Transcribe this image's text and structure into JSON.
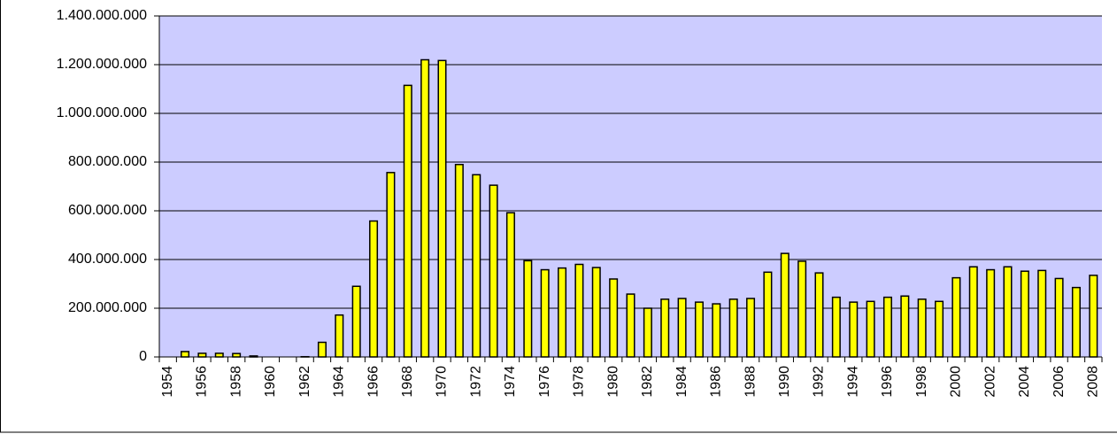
{
  "chart_data": {
    "type": "bar",
    "categories": [
      "1954",
      null,
      "1956",
      null,
      "1958",
      null,
      "1960",
      null,
      "1962",
      null,
      "1964",
      null,
      "1966",
      null,
      "1968",
      null,
      "1970",
      null,
      "1972",
      null,
      "1974",
      null,
      "1976",
      null,
      "1978",
      null,
      "1980",
      null,
      "1982",
      null,
      "1984",
      null,
      "1986",
      null,
      "1988",
      null,
      "1990",
      null,
      "1992",
      null,
      "1994",
      null,
      "1996",
      null,
      "1998",
      null,
      "2000",
      null,
      "2002",
      null,
      "2004",
      null,
      "2006",
      null,
      "2008"
    ],
    "values": [
      0,
      22000000,
      15000000,
      15000000,
      14000000,
      4000000,
      0,
      0,
      1000000,
      60000000,
      172000000,
      290000000,
      558000000,
      757000000,
      1115000000,
      1220000000,
      1217000000,
      790000000,
      748000000,
      705000000,
      592000000,
      395000000,
      358000000,
      365000000,
      380000000,
      367000000,
      320000000,
      258000000,
      200000000,
      237000000,
      240000000,
      225000000,
      218000000,
      237000000,
      240000000,
      348000000,
      425000000,
      393000000,
      345000000,
      245000000,
      225000000,
      228000000,
      245000000,
      250000000,
      237000000,
      228000000,
      325000000,
      370000000,
      358000000,
      370000000,
      352000000,
      355000000,
      322000000,
      285000000,
      335000000
    ],
    "color": "#ffff00",
    "ylim": [
      0,
      1400000000
    ],
    "yticks": [
      0,
      {
        "value": 200000000,
        "label": "200.000.000"
      },
      {
        "value": 400000000,
        "label": "400.000.000"
      },
      {
        "value": 600000000,
        "label": "600.000.000"
      },
      {
        "value": 800000000,
        "label": "800.000.000"
      },
      {
        "value": 1000000000,
        "label": "1.000.000.000"
      },
      {
        "value": 1200000000,
        "label": "1.200.000.000"
      },
      {
        "value": 1400000000,
        "label": "1.400.000.000"
      }
    ],
    "grid": true
  }
}
